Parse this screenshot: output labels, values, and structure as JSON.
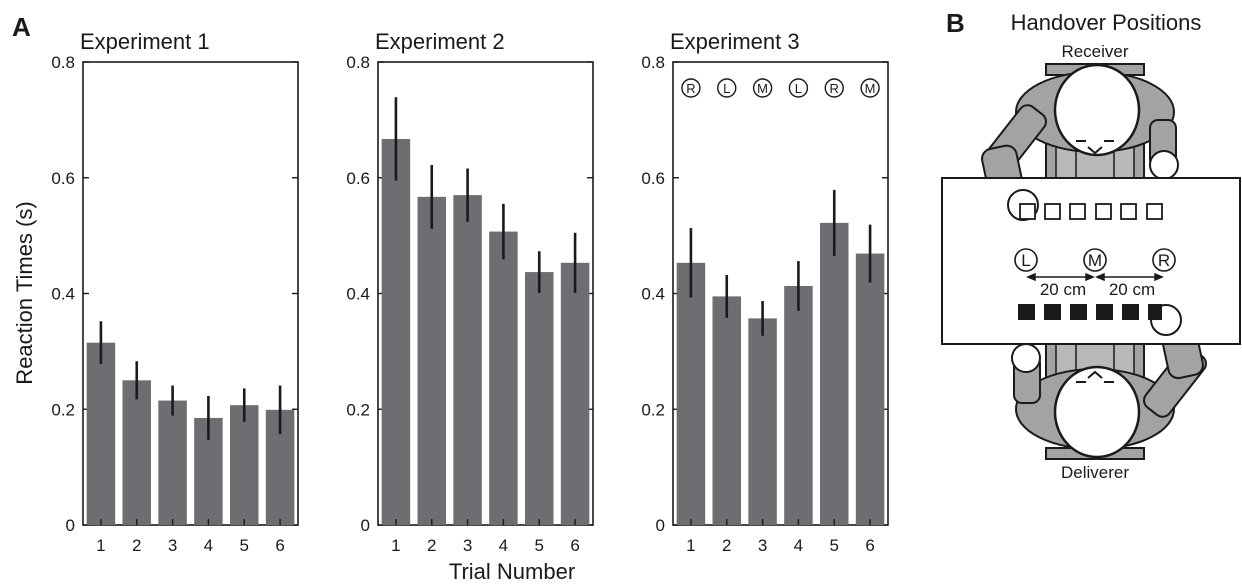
{
  "panel_a_label": "A",
  "panel_b_label": "B",
  "shared_ylabel": "Reaction Times (s)",
  "shared_xlabel": "Trial Number",
  "chart_data": [
    {
      "type": "bar",
      "title": "Experiment 1",
      "categories": [
        "1",
        "2",
        "3",
        "4",
        "5",
        "6"
      ],
      "values": [
        0.315,
        0.25,
        0.215,
        0.185,
        0.207,
        0.199
      ],
      "errors": [
        0.037,
        0.033,
        0.026,
        0.038,
        0.029,
        0.042
      ],
      "yticks": [
        "0",
        "0.2",
        "0.4",
        "0.6",
        "0.8"
      ],
      "ylim": [
        0,
        0.8
      ],
      "bar_color": "#6d6e71",
      "annotations": []
    },
    {
      "type": "bar",
      "title": "Experiment 2",
      "categories": [
        "1",
        "2",
        "3",
        "4",
        "5",
        "6"
      ],
      "values": [
        0.667,
        0.567,
        0.57,
        0.507,
        0.437,
        0.453
      ],
      "errors": [
        0.072,
        0.055,
        0.046,
        0.048,
        0.036,
        0.052
      ],
      "yticks": [
        "0",
        "0.2",
        "0.4",
        "0.6",
        "0.8"
      ],
      "ylim": [
        0,
        0.8
      ],
      "bar_color": "#6d6e71",
      "annotations": []
    },
    {
      "type": "bar",
      "title": "Experiment 3",
      "categories": [
        "1",
        "2",
        "3",
        "4",
        "5",
        "6"
      ],
      "values": [
        0.453,
        0.395,
        0.357,
        0.413,
        0.522,
        0.469
      ],
      "errors": [
        0.06,
        0.037,
        0.03,
        0.043,
        0.057,
        0.05
      ],
      "yticks": [
        "0",
        "0.2",
        "0.4",
        "0.6",
        "0.8"
      ],
      "ylim": [
        0,
        0.8
      ],
      "bar_color": "#6d6e71",
      "annotations": [
        "R",
        "L",
        "M",
        "L",
        "R",
        "M"
      ]
    }
  ],
  "diagram": {
    "title": "Handover Positions",
    "receiver_label": "Receiver",
    "deliverer_label": "Deliverer",
    "position_labels": [
      "L",
      "M",
      "R"
    ],
    "distance_labels": [
      "20 cm",
      "20 cm"
    ],
    "colors": {
      "person_fill": "#a3a3a3",
      "table_fill": "#ffffff",
      "filled_square": "#1a1a1a"
    }
  }
}
